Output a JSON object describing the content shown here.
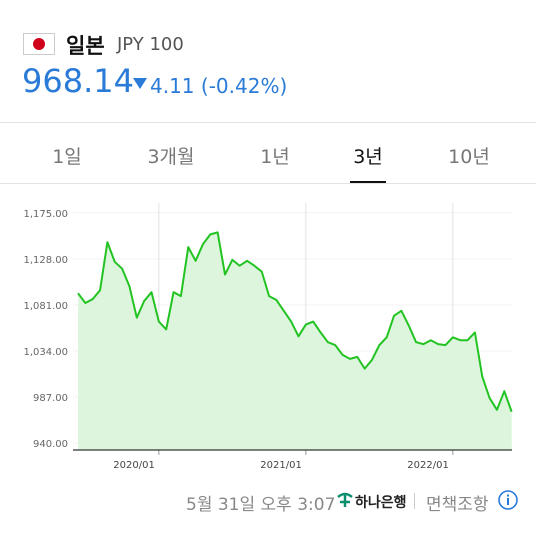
{
  "header": {
    "country": "일본",
    "currency": "JPY 100",
    "price": "968.14",
    "change": "4.11 (-0.42%)"
  },
  "tabs": [
    "1일",
    "3개월",
    "1년",
    "3년",
    "10년"
  ],
  "selected_tab": 3,
  "chart_data": {
    "type": "line",
    "categories": [
      null,
      null,
      null,
      null,
      null,
      null,
      null,
      null,
      null,
      null,
      null,
      "2020/01",
      null,
      null,
      null,
      null,
      null,
      null,
      null,
      null,
      null,
      null,
      null,
      null,
      null,
      null,
      null,
      null,
      null,
      null,
      null,
      "2021/01",
      null,
      null,
      null,
      null,
      null,
      null,
      null,
      null,
      null,
      null,
      null,
      null,
      null,
      null,
      null,
      null,
      null,
      null,
      null,
      "2022/01",
      null,
      null,
      null,
      null,
      null,
      null,
      null,
      null
    ],
    "values": [
      1093,
      1083,
      1087,
      1096,
      1145,
      1125,
      1118,
      1100,
      1068,
      1085,
      1094,
      1064,
      1056,
      1094,
      1090,
      1140,
      1126,
      1143,
      1153,
      1155,
      1112,
      1127,
      1121,
      1126,
      1121,
      1115,
      1090,
      1086,
      1075,
      1064,
      1049,
      1061,
      1064,
      1053,
      1043,
      1040,
      1030,
      1026,
      1028,
      1016,
      1025,
      1040,
      1048,
      1070,
      1075,
      1060,
      1043,
      1041,
      1045,
      1041,
      1040,
      1048,
      1045,
      1045,
      1053,
      1008,
      986,
      974,
      993,
      972
    ],
    "color": "#22c322",
    "fill": "#dcf5dc",
    "ylim": [
      933,
      1185
    ],
    "yticks": [
      {
        "value": 940,
        "label": "940.00"
      },
      {
        "value": 987,
        "label": "987.00"
      },
      {
        "value": 1034,
        "label": "1,034.00"
      },
      {
        "value": 1081,
        "label": "1,081.00"
      },
      {
        "value": 1128,
        "label": "1,128.00"
      },
      {
        "value": 1175,
        "label": "1,175.00"
      }
    ],
    "grid": true
  },
  "footer": {
    "time": "5월 31일 오후 3:07",
    "bank": "하나은행",
    "disclaimer": "면책조항"
  }
}
